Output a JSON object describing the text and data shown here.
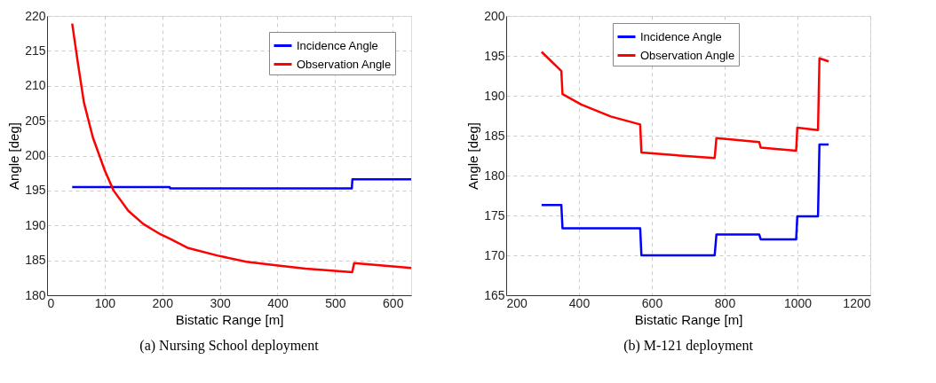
{
  "chart_data": [
    {
      "type": "line",
      "xlabel": "Bistatic Range [m]",
      "ylabel": "Angle [deg]",
      "annotations": [
        "(a) Nursing School deployment"
      ],
      "xlim": [
        0,
        632
      ],
      "xticks": [
        0,
        100,
        200,
        300,
        400,
        500,
        600
      ],
      "ylim": [
        180,
        220
      ],
      "yticks": [
        180,
        185,
        190,
        195,
        200,
        205,
        210,
        215,
        220
      ],
      "grid": true,
      "legend": "top right",
      "line_style": "solid",
      "marker": "none",
      "series": [
        {
          "name": "Incidence Angle",
          "color": "#0000ff",
          "x": [
            43.6,
            212.8,
            213.5,
            529,
            530,
            632
          ],
          "values": [
            195.5,
            195.5,
            195.3,
            195.3,
            196.6,
            196.6
          ]
        },
        {
          "name": "Observation Angle",
          "color": "#ff0000",
          "x": [
            43.6,
            53.8,
            64,
            79.5,
            100,
            115.4,
            141,
            167,
            197.4,
            212.8,
            243.6,
            294.9,
            346,
            397.4,
            448.7,
            529.7,
            533,
            632
          ],
          "values": [
            218.9,
            213.1,
            207.6,
            202.6,
            197.9,
            195.0,
            192.1,
            190.2,
            188.7,
            188.1,
            186.8,
            185.7,
            184.8,
            184.3,
            183.8,
            183.3,
            184.6,
            183.9
          ]
        }
      ]
    },
    {
      "type": "line",
      "xlabel": "Bistatic Range [m]",
      "ylabel": "Angle [deg]",
      "annotations": [
        "(b) M-121 deployment"
      ],
      "xlim": [
        200,
        1200
      ],
      "xticks": [
        200,
        400,
        600,
        800,
        1000,
        1200
      ],
      "ylim": [
        165,
        200
      ],
      "yticks": [
        165,
        170,
        175,
        180,
        185,
        190,
        195,
        200
      ],
      "grid": true,
      "legend": "top",
      "line_style": "solid",
      "marker": "none",
      "series": [
        {
          "name": "Incidence Angle",
          "color": "#0000ff",
          "x": [
            297.3,
            351.5,
            354.7,
            568,
            571.4,
            772.6,
            777.4,
            895,
            899,
            996.4,
            999.6,
            1056.4,
            1060.4,
            1085.6
          ],
          "values": [
            176.3,
            176.3,
            173.4,
            173.4,
            170.0,
            170.0,
            172.6,
            172.6,
            172.0,
            172.0,
            174.9,
            174.9,
            183.9,
            183.9
          ]
        },
        {
          "name": "Observation Angle",
          "color": "#ff0000",
          "x": [
            297.3,
            351.5,
            354.7,
            406,
            487,
            568,
            571.4,
            649,
            772.6,
            777.4,
            895,
            899,
            996.4,
            999.6,
            1056.4,
            1060.4,
            1085.6
          ],
          "values": [
            195.5,
            193.1,
            190.2,
            188.9,
            187.4,
            186.4,
            182.9,
            182.6,
            182.2,
            184.7,
            184.2,
            183.5,
            183.1,
            186.0,
            185.7,
            194.7,
            194.3
          ]
        }
      ]
    }
  ]
}
